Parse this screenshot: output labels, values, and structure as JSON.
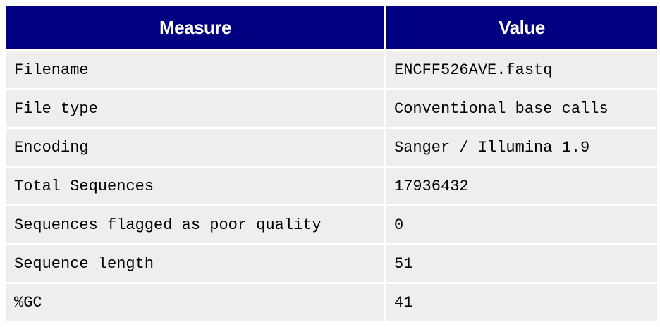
{
  "table": {
    "headers": [
      "Measure",
      "Value"
    ],
    "rows": [
      [
        "Filename",
        "ENCFF526AVE.fastq"
      ],
      [
        "File type",
        "Conventional base calls"
      ],
      [
        "Encoding",
        "Sanger / Illumina 1.9"
      ],
      [
        "Total Sequences",
        "17936432"
      ],
      [
        "Sequences flagged as poor quality",
        "0"
      ],
      [
        "Sequence length",
        "51"
      ],
      [
        "%GC",
        "41"
      ]
    ]
  },
  "colors": {
    "header_background": "#000080",
    "header_text": "#ffffff",
    "cell_background": "#eeeeee"
  }
}
